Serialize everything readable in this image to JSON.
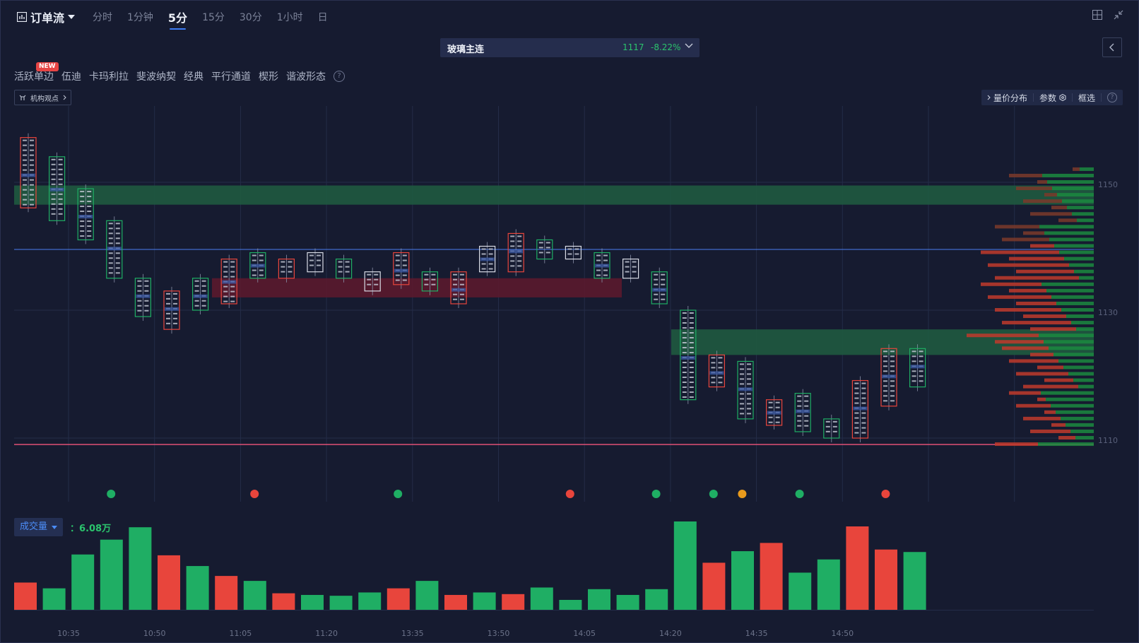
{
  "header": {
    "title": "订单流",
    "timeframes": [
      "分时",
      "1分钟",
      "5分",
      "15分",
      "30分",
      "1小时",
      "日"
    ],
    "active_timeframe": "5分"
  },
  "contract": {
    "name": "玻璃主连",
    "price": "1117",
    "change": "-8.22%"
  },
  "indicators": {
    "new_badge": "NEW",
    "items": [
      "活跃单边",
      "伍迪",
      "卡玛利拉",
      "斐波纳契",
      "经典",
      "平行通道",
      "楔形",
      "谐波形态"
    ],
    "help": "?"
  },
  "institution": {
    "label": "机构观点"
  },
  "tools": {
    "volume_profile": "量价分布",
    "params": "参数",
    "select": "框选",
    "help": "?"
  },
  "price_axis": [
    "1150",
    "1130",
    "1110"
  ],
  "volume": {
    "label": "成交量",
    "value": "6.08万"
  },
  "chart_data": {
    "type": "bar",
    "title": "",
    "xlabel": "",
    "ylabel": "",
    "x_tick_labels": [
      "10:35",
      "10:50",
      "11:05",
      "11:20",
      "13:35",
      "13:50",
      "14:05",
      "14:20",
      "14:35",
      "14:50"
    ],
    "candles": [
      {
        "high": 1157,
        "low": 1146,
        "dir": "down"
      },
      {
        "high": 1154,
        "low": 1144,
        "dir": "up"
      },
      {
        "high": 1149,
        "low": 1141,
        "dir": "up"
      },
      {
        "high": 1144,
        "low": 1135,
        "dir": "up"
      },
      {
        "high": 1135,
        "low": 1129,
        "dir": "up"
      },
      {
        "high": 1133,
        "low": 1127,
        "dir": "down"
      },
      {
        "high": 1135,
        "low": 1130,
        "dir": "up"
      },
      {
        "high": 1138,
        "low": 1131,
        "dir": "down"
      },
      {
        "high": 1139,
        "low": 1135,
        "dir": "up"
      },
      {
        "high": 1138,
        "low": 1135,
        "dir": "down"
      },
      {
        "high": 1139,
        "low": 1136,
        "dir": "flat"
      },
      {
        "high": 1138,
        "low": 1135,
        "dir": "up"
      },
      {
        "high": 1136,
        "low": 1133,
        "dir": "flat"
      },
      {
        "high": 1139,
        "low": 1134,
        "dir": "down"
      },
      {
        "high": 1136,
        "low": 1133,
        "dir": "up"
      },
      {
        "high": 1136,
        "low": 1131,
        "dir": "down"
      },
      {
        "high": 1140,
        "low": 1136,
        "dir": "flat"
      },
      {
        "high": 1142,
        "low": 1136,
        "dir": "down"
      },
      {
        "high": 1141,
        "low": 1138,
        "dir": "up"
      },
      {
        "high": 1140,
        "low": 1138,
        "dir": "flat"
      },
      {
        "high": 1139,
        "low": 1135,
        "dir": "up"
      },
      {
        "high": 1138,
        "low": 1135,
        "dir": "flat"
      },
      {
        "high": 1136,
        "low": 1131,
        "dir": "up"
      },
      {
        "high": 1130,
        "low": 1116,
        "dir": "up"
      },
      {
        "high": 1123,
        "low": 1118,
        "dir": "down"
      },
      {
        "high": 1122,
        "low": 1113,
        "dir": "up"
      },
      {
        "high": 1116,
        "low": 1112,
        "dir": "down"
      },
      {
        "high": 1117,
        "low": 1111,
        "dir": "up"
      },
      {
        "high": 1113,
        "low": 1110,
        "dir": "up"
      },
      {
        "high": 1119,
        "low": 1110,
        "dir": "down"
      },
      {
        "high": 1124,
        "low": 1115,
        "dir": "down"
      },
      {
        "high": 1124,
        "low": 1118,
        "dir": "up"
      }
    ],
    "volume": [
      {
        "v": 33,
        "dir": "down"
      },
      {
        "v": 26,
        "dir": "up"
      },
      {
        "v": 67,
        "dir": "up"
      },
      {
        "v": 85,
        "dir": "up"
      },
      {
        "v": 100,
        "dir": "up"
      },
      {
        "v": 66,
        "dir": "down"
      },
      {
        "v": 53,
        "dir": "up"
      },
      {
        "v": 41,
        "dir": "down"
      },
      {
        "v": 35,
        "dir": "up"
      },
      {
        "v": 20,
        "dir": "down"
      },
      {
        "v": 18,
        "dir": "up"
      },
      {
        "v": 17,
        "dir": "up"
      },
      {
        "v": 21,
        "dir": "up"
      },
      {
        "v": 26,
        "dir": "down"
      },
      {
        "v": 35,
        "dir": "up"
      },
      {
        "v": 18,
        "dir": "down"
      },
      {
        "v": 21,
        "dir": "up"
      },
      {
        "v": 19,
        "dir": "down"
      },
      {
        "v": 27,
        "dir": "up"
      },
      {
        "v": 12,
        "dir": "up"
      },
      {
        "v": 25,
        "dir": "up"
      },
      {
        "v": 18,
        "dir": "up"
      },
      {
        "v": 25,
        "dir": "up"
      },
      {
        "v": 107,
        "dir": "up"
      },
      {
        "v": 57,
        "dir": "down"
      },
      {
        "v": 71,
        "dir": "up"
      },
      {
        "v": 81,
        "dir": "down"
      },
      {
        "v": 45,
        "dir": "up"
      },
      {
        "v": 61,
        "dir": "up"
      },
      {
        "v": 101,
        "dir": "down"
      },
      {
        "v": 73,
        "dir": "down"
      },
      {
        "v": 70,
        "dir": "up"
      }
    ],
    "zones": [
      {
        "from": 1146.5,
        "to": 1149.5,
        "color": "#1f5a40"
      },
      {
        "from": 1132,
        "to": 1135,
        "color": "#5a1a2e"
      },
      {
        "from": 1123,
        "to": 1127,
        "color": "#1f5a40"
      }
    ],
    "current_price": 1117,
    "low_line": 1109,
    "colors": {
      "up": "#1fae64",
      "down": "#e8453c",
      "grid": "#242c48",
      "bg": "#161b30"
    }
  }
}
